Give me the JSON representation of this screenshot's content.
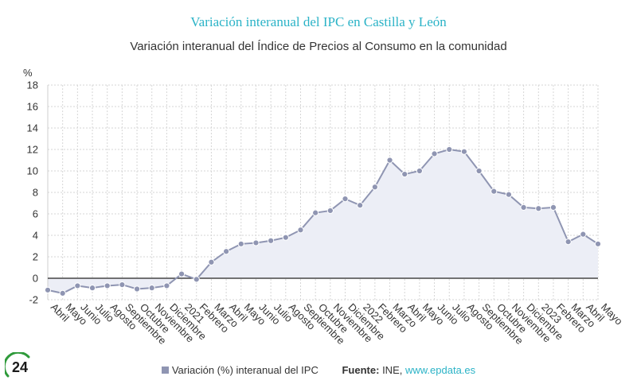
{
  "title": "Variación interanual del IPC en Castilla y León",
  "subtitle": "Variación interanual del Índice de Precios al Consumo en la comunidad",
  "colors": {
    "title": "#2bb3c7",
    "series": "#8f95b2",
    "area": "#eceef6",
    "zero_line": "#222222",
    "grid": "#d6d6d6",
    "link": "#2bb3c7",
    "logo_green": "#2e9a3a"
  },
  "legend": {
    "series_label": "Variación (%) interanual del IPC",
    "source_label": "Fuente:",
    "source_text": "INE,",
    "source_link": "www.epdata.es"
  },
  "logo": {
    "text": "24",
    "icon": "brand-logo-icon"
  },
  "chart_data": {
    "type": "area",
    "title": "Variación interanual del IPC en Castilla y León",
    "xlabel": "",
    "ylabel": "%",
    "ylim": [
      -2,
      18
    ],
    "yticks": [
      -2,
      0,
      2,
      4,
      6,
      8,
      10,
      12,
      14,
      16,
      18
    ],
    "grid": true,
    "legend_position": "bottom",
    "categories": [
      "Abril",
      "Mayo",
      "Junio",
      "Julio",
      "Agosto",
      "Septiembre",
      "Octubre",
      "Noviembre",
      "Diciembre",
      "2021",
      "Febrero",
      "Marzo",
      "Abril",
      "Mayo",
      "Junio",
      "Julio",
      "Agosto",
      "Septiembre",
      "Octubre",
      "Noviembre",
      "Diciembre",
      "2022",
      "Febrero",
      "Marzo",
      "Abril",
      "Mayo",
      "Junio",
      "Julio",
      "Agosto",
      "Septiembre",
      "Octubre",
      "Noviembre",
      "Diciembre",
      "2023",
      "Febrero",
      "Marzo",
      "Abril",
      "Mayo"
    ],
    "series": [
      {
        "name": "Variación (%) interanual del IPC",
        "values": [
          -1.1,
          -1.4,
          -0.7,
          -0.9,
          -0.7,
          -0.6,
          -1.0,
          -0.9,
          -0.7,
          0.4,
          -0.1,
          1.5,
          2.5,
          3.2,
          3.3,
          3.5,
          3.8,
          4.5,
          6.1,
          6.3,
          7.4,
          6.8,
          8.5,
          11.0,
          9.7,
          10.0,
          11.6,
          12.0,
          11.8,
          10.0,
          8.1,
          7.8,
          6.6,
          6.5,
          6.6,
          3.4,
          4.1,
          3.2
        ]
      }
    ]
  }
}
